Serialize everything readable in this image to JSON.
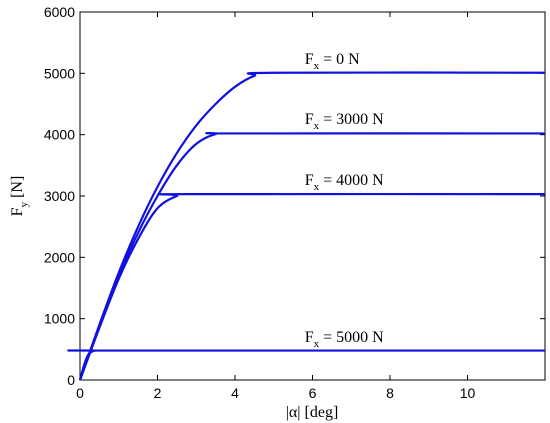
{
  "chart_data": {
    "type": "line",
    "title": "",
    "xlabel": "|α| [deg]",
    "ylabel_main": "F",
    "ylabel_sub": "y",
    "ylabel_unit": " [N]",
    "xlim": [
      0,
      12
    ],
    "ylim": [
      0,
      6000
    ],
    "xticks": [
      0,
      2,
      4,
      6,
      8,
      10
    ],
    "yticks": [
      0,
      1000,
      2000,
      3000,
      4000,
      5000,
      6000
    ],
    "grid": false,
    "line_color": "#1010e0",
    "series": [
      {
        "label_main": "F",
        "label_sub": "x",
        "label_rest": " = 0 N",
        "label_x": 5.8,
        "label_y": 5150,
        "x": [
          0,
          0.5,
          1,
          1.5,
          2,
          2.5,
          3,
          3.5,
          4,
          4.5,
          5,
          12
        ],
        "y": [
          0,
          900,
          1750,
          2500,
          3150,
          3700,
          4150,
          4500,
          4780,
          4960,
          5010,
          5010
        ]
      },
      {
        "label_main": "F",
        "label_sub": "x",
        "label_rest": " = 3000 N",
        "label_x": 5.8,
        "label_y": 4170,
        "x": [
          0,
          0.5,
          1,
          1.5,
          2,
          2.5,
          3,
          3.5,
          4,
          12
        ],
        "y": [
          0,
          880,
          1700,
          2400,
          3000,
          3500,
          3850,
          4010,
          4020,
          4020
        ]
      },
      {
        "label_main": "F",
        "label_sub": "x",
        "label_rest": " = 4000 N",
        "label_x": 5.8,
        "label_y": 3180,
        "x": [
          0,
          0.5,
          1,
          1.5,
          2,
          2.5,
          2.8,
          12
        ],
        "y": [
          0,
          850,
          1650,
          2300,
          2800,
          3000,
          3030,
          3030
        ]
      },
      {
        "label_main": "F",
        "label_sub": "x",
        "label_rest": " = 5000 N",
        "label_x": 5.8,
        "label_y": 620,
        "x": [
          0,
          0.1,
          0.2,
          0.3,
          0.4,
          0.6,
          12
        ],
        "y": [
          0,
          230,
          400,
          460,
          480,
          480,
          480
        ]
      }
    ]
  }
}
